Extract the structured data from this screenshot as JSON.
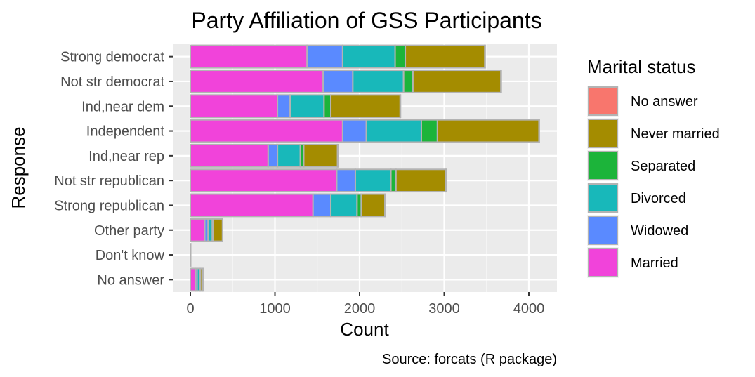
{
  "chart_data": {
    "type": "bar",
    "orientation": "horizontal",
    "stacked": true,
    "title": "Party Affiliation of GSS Participants",
    "xlabel": "Count",
    "ylabel": "Response",
    "caption": "Source: forcats (R package)",
    "xlim": [
      0,
      4300
    ],
    "xticks": [
      "0",
      "1000",
      "2000",
      "3000",
      "4000"
    ],
    "grid": true,
    "legend_position": "right",
    "legend_title": "Marital status",
    "categories": [
      "Strong democrat",
      "Not str democrat",
      "Ind,near dem",
      "Independent",
      "Ind,near rep",
      "Not str republican",
      "Strong republican",
      "Other party",
      "Don't know",
      "No answer"
    ],
    "series": [
      {
        "name": "Married",
        "color": "#F143DA",
        "values": [
          1380,
          1570,
          1030,
          1800,
          920,
          1730,
          1450,
          170,
          0,
          60
        ]
      },
      {
        "name": "Widowed",
        "color": "#5A8AFF",
        "values": [
          420,
          350,
          150,
          280,
          110,
          220,
          210,
          40,
          0,
          20
        ]
      },
      {
        "name": "Divorced",
        "color": "#18B8BA",
        "values": [
          620,
          600,
          400,
          650,
          270,
          420,
          310,
          50,
          0,
          30
        ]
      },
      {
        "name": "Separated",
        "color": "#1CB43A",
        "values": [
          120,
          110,
          80,
          190,
          40,
          60,
          50,
          10,
          0,
          10
        ]
      },
      {
        "name": "Never married",
        "color": "#A48C00",
        "values": [
          940,
          1040,
          820,
          1200,
          400,
          590,
          280,
          110,
          1,
          25
        ]
      },
      {
        "name": "No answer",
        "color": "#F8766D",
        "values": [
          2,
          2,
          2,
          2,
          1,
          2,
          1,
          0,
          0,
          1
        ]
      }
    ],
    "legend_order": [
      "No answer",
      "Never married",
      "Separated",
      "Divorced",
      "Widowed",
      "Married"
    ]
  }
}
